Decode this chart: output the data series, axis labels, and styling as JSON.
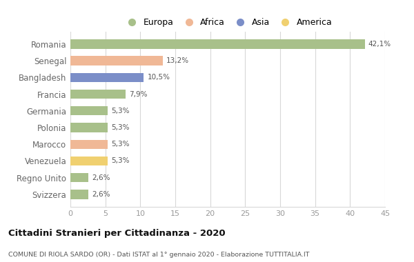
{
  "categories": [
    "Romania",
    "Senegal",
    "Bangladesh",
    "Francia",
    "Germania",
    "Polonia",
    "Marocco",
    "Venezuela",
    "Regno Unito",
    "Svizzera"
  ],
  "values": [
    42.1,
    13.2,
    10.5,
    7.9,
    5.3,
    5.3,
    5.3,
    5.3,
    2.6,
    2.6
  ],
  "labels": [
    "42,1%",
    "13,2%",
    "10,5%",
    "7,9%",
    "5,3%",
    "5,3%",
    "5,3%",
    "5,3%",
    "2,6%",
    "2,6%"
  ],
  "colors": [
    "#a8c08a",
    "#f0b896",
    "#7b8ec8",
    "#a8c08a",
    "#a8c08a",
    "#a8c08a",
    "#f0b896",
    "#f0d070",
    "#a8c08a",
    "#a8c08a"
  ],
  "legend_labels": [
    "Europa",
    "Africa",
    "Asia",
    "America"
  ],
  "legend_colors": [
    "#a8c08a",
    "#f0b896",
    "#7b8ec8",
    "#f0d070"
  ],
  "title": "Cittadini Stranieri per Cittadinanza - 2020",
  "subtitle": "COMUNE DI RIOLA SARDO (OR) - Dati ISTAT al 1° gennaio 2020 - Elaborazione TUTTITALIA.IT",
  "xlim": [
    0,
    45
  ],
  "xticks": [
    0,
    5,
    10,
    15,
    20,
    25,
    30,
    35,
    40,
    45
  ],
  "bg_color": "#ffffff",
  "grid_color": "#d8d8d8",
  "label_color": "#666666",
  "value_label_color": "#555555",
  "bar_height": 0.55
}
